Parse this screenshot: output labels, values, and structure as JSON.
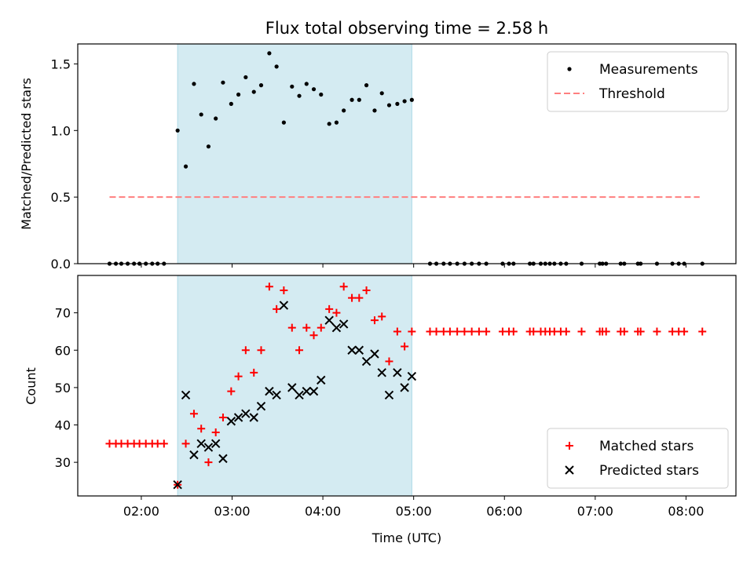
{
  "chart_data": {
    "type": "scatter",
    "title": "Flux total observing time = 2.58 h",
    "xlabel": "Time (UTC)",
    "x_unit": "hours UTC",
    "xlim": [
      1.3,
      8.55
    ],
    "xticks": [
      2,
      3,
      4,
      5,
      6,
      7,
      8
    ],
    "xtick_labels": [
      "02:00",
      "03:00",
      "04:00",
      "05:00",
      "06:00",
      "07:00",
      "08:00"
    ],
    "observing_window": [
      2.4,
      4.98
    ],
    "window_color": "#add8e6",
    "panels": [
      {
        "ylabel": "Matched/Predicted stars",
        "ylim": [
          0,
          1.65
        ],
        "yticks": [
          0,
          0.5,
          1.0,
          1.5
        ],
        "ytick_labels": [
          "0.0",
          "0.5",
          "1.0",
          "1.5"
        ],
        "legend_position": "upper right",
        "threshold": {
          "name": "Threshold",
          "value": 0.5,
          "x_range": [
            1.65,
            8.15
          ],
          "color": "#ff7f7f"
        },
        "series": [
          {
            "name": "Measurements",
            "marker": "dot",
            "color": "#000000",
            "x": [
              1.65,
              1.72,
              1.78,
              1.85,
              1.92,
              1.98,
              2.05,
              2.12,
              2.18,
              2.25,
              2.4,
              2.49,
              2.58,
              2.66,
              2.74,
              2.82,
              2.9,
              2.99,
              3.07,
              3.15,
              3.24,
              3.32,
              3.41,
              3.49,
              3.57,
              3.66,
              3.74,
              3.82,
              3.9,
              3.98,
              4.07,
              4.15,
              4.23,
              4.32,
              4.4,
              4.48,
              4.57,
              4.65,
              4.73,
              4.82,
              4.9,
              4.98,
              5.18,
              5.25,
              5.33,
              5.4,
              5.48,
              5.56,
              5.64,
              5.72,
              5.8,
              5.98,
              6.05,
              6.1,
              6.28,
              6.32,
              6.4,
              6.45,
              6.5,
              6.55,
              6.62,
              6.68,
              6.85,
              7.05,
              7.08,
              7.12,
              7.28,
              7.32,
              7.47,
              7.5,
              7.68,
              7.85,
              7.92,
              7.98,
              8.18
            ],
            "y": [
              0,
              0,
              0,
              0,
              0,
              0,
              0,
              0,
              0,
              0,
              1.0,
              0.73,
              1.35,
              1.12,
              0.88,
              1.09,
              1.36,
              1.2,
              1.27,
              1.4,
              1.29,
              1.34,
              1.58,
              1.48,
              1.06,
              1.33,
              1.26,
              1.35,
              1.31,
              1.27,
              1.05,
              1.06,
              1.15,
              1.23,
              1.23,
              1.34,
              1.15,
              1.28,
              1.19,
              1.2,
              1.22,
              1.23,
              0,
              0,
              0,
              0,
              0,
              0,
              0,
              0,
              0,
              0,
              0,
              0,
              0,
              0,
              0,
              0,
              0,
              0,
              0,
              0,
              0,
              0,
              0,
              0,
              0,
              0,
              0,
              0,
              0,
              0,
              0,
              0,
              0
            ]
          }
        ]
      },
      {
        "ylabel": "Count",
        "ylim": [
          21,
          80
        ],
        "yticks": [
          30,
          40,
          50,
          60,
          70
        ],
        "ytick_labels": [
          "30",
          "40",
          "50",
          "60",
          "70"
        ],
        "legend_position": "lower right",
        "series": [
          {
            "name": "Matched stars",
            "marker": "plus",
            "color": "#ff0000",
            "x": [
              1.65,
              1.72,
              1.78,
              1.85,
              1.92,
              1.98,
              2.05,
              2.12,
              2.18,
              2.25,
              2.4,
              2.49,
              2.58,
              2.66,
              2.74,
              2.82,
              2.9,
              2.99,
              3.07,
              3.15,
              3.24,
              3.32,
              3.41,
              3.49,
              3.57,
              3.66,
              3.74,
              3.82,
              3.9,
              3.98,
              4.07,
              4.15,
              4.23,
              4.32,
              4.4,
              4.48,
              4.57,
              4.65,
              4.73,
              4.82,
              4.9,
              4.98,
              5.18,
              5.25,
              5.33,
              5.4,
              5.48,
              5.56,
              5.64,
              5.72,
              5.8,
              5.98,
              6.05,
              6.1,
              6.28,
              6.32,
              6.4,
              6.45,
              6.5,
              6.55,
              6.62,
              6.68,
              6.85,
              7.05,
              7.08,
              7.12,
              7.28,
              7.32,
              7.47,
              7.5,
              7.68,
              7.85,
              7.92,
              7.98,
              8.18
            ],
            "y": [
              35,
              35,
              35,
              35,
              35,
              35,
              35,
              35,
              35,
              35,
              24,
              35,
              43,
              39,
              30,
              38,
              42,
              49,
              53,
              60,
              54,
              60,
              77,
              71,
              76,
              66,
              60,
              66,
              64,
              66,
              71,
              70,
              77,
              74,
              74,
              76,
              68,
              69,
              57,
              65,
              61,
              65,
              65,
              65,
              65,
              65,
              65,
              65,
              65,
              65,
              65,
              65,
              65,
              65,
              65,
              65,
              65,
              65,
              65,
              65,
              65,
              65,
              65,
              65,
              65,
              65,
              65,
              65,
              65,
              65,
              65,
              65,
              65,
              65,
              65
            ]
          },
          {
            "name": "Predicted stars",
            "marker": "x",
            "color": "#000000",
            "x": [
              2.4,
              2.49,
              2.58,
              2.66,
              2.74,
              2.82,
              2.9,
              2.99,
              3.07,
              3.15,
              3.24,
              3.32,
              3.41,
              3.49,
              3.57,
              3.66,
              3.74,
              3.82,
              3.9,
              3.98,
              4.07,
              4.15,
              4.23,
              4.32,
              4.4,
              4.48,
              4.57,
              4.65,
              4.73,
              4.82,
              4.9,
              4.98
            ],
            "y": [
              24,
              48,
              32,
              35,
              34,
              35,
              31,
              41,
              42,
              43,
              42,
              45,
              49,
              48,
              72,
              50,
              48,
              49,
              49,
              52,
              68,
              66,
              67,
              60,
              60,
              57,
              59,
              54,
              48,
              54,
              50,
              53
            ]
          }
        ]
      }
    ]
  }
}
